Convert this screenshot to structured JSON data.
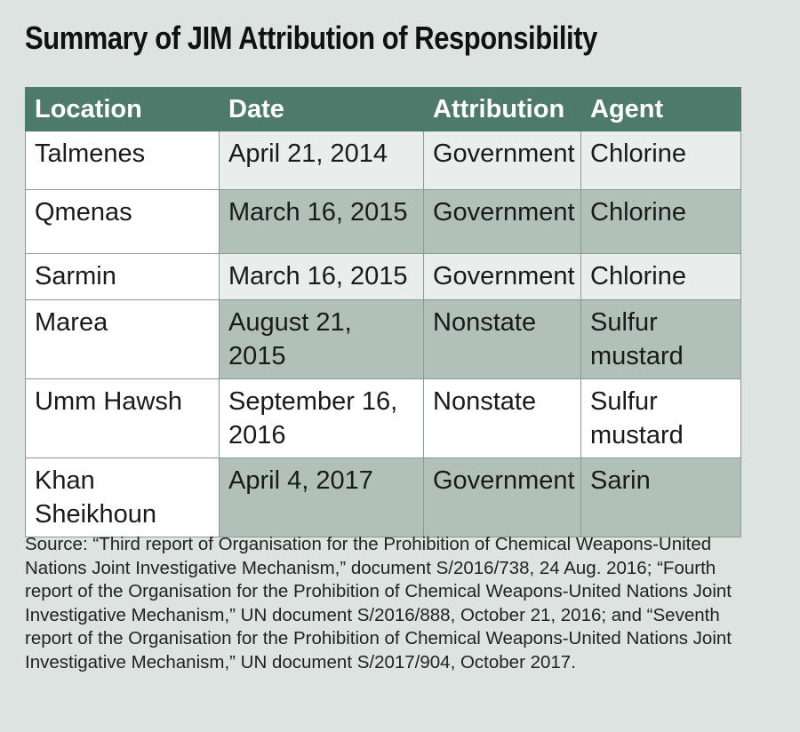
{
  "title": "Summary of JIM Attribution of Responsibility",
  "table": {
    "headers": [
      "Location",
      "Date",
      "Attribution",
      "Agent"
    ],
    "rows": [
      {
        "location": "Talmenes",
        "date": "April 21, 2014",
        "attribution": "Government",
        "agent": "Chlorine"
      },
      {
        "location": "Qmenas",
        "date": "March 16, 2015",
        "attribution": "Government",
        "agent": "Chlorine"
      },
      {
        "location": "Sarmin",
        "date": "March 16, 2015",
        "attribution": "Government",
        "agent": "Chlorine"
      },
      {
        "location": "Marea",
        "date": "August 21, 2015",
        "attribution": "Nonstate",
        "agent": "Sulfur mustard"
      },
      {
        "location": "Umm Hawsh",
        "date": "September 16, 2016",
        "attribution": "Nonstate",
        "agent": "Sulfur mustard"
      },
      {
        "location": "Khan Sheikhoun",
        "date": "April 4, 2017",
        "attribution": "Government",
        "agent": "Sarin"
      }
    ]
  },
  "source": "Source: “Third report of Organisation for the Prohibition of Chemical Weapons-United Nations Joint Investigative Mechanism,” document S/2016/738, 24 Aug. 2016; “Fourth report of the Organisation for the Prohibition of Chemical Weapons-United Nations Joint Investigative Mechanism,” UN document S/2016/888, October 21, 2016; and “Seventh report of the Organisation for the Prohibition of Chemical Weapons-United Nations Joint Investigative Mechanism,” UN document S/2017/904, October 2017.",
  "colors": {
    "background": "#dce3e0",
    "header": "#4d7a6b",
    "row_light": "#e9edeb",
    "row_dark": "#b1c1ba"
  }
}
